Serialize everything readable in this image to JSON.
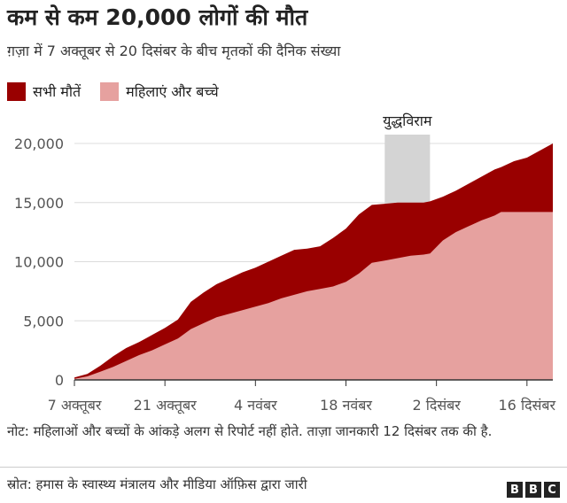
{
  "header": {
    "title": "कम से कम 20,000 लोगों की मौत",
    "subtitle": "ग़ज़ा में 7 अक्तूबर से 20 दिसंबर के बीच मृतकों की दैनिक संख्या"
  },
  "footer": {
    "note": "नोट: महिलाओं और बच्चों के आंकड़े अलग से रिपोर्ट नहीं होते. ताज़ा जानकारी 12 दिसंबर तक की है.",
    "source": "स्रोत: हमास के स्वास्थ्य मंत्रालय और मीडिया ऑफ़िस द्वारा जारी",
    "logo": [
      "B",
      "B",
      "C"
    ]
  },
  "chart_data": {
    "type": "area",
    "title": "कम से कम 20,000 लोगों की मौत",
    "subtitle": "ग़ज़ा में 7 अक्तूबर से 20 दिसंबर के बीच मृतकों की दैनिक संख्या",
    "xlabel": "",
    "ylabel": "",
    "ylim": [
      0,
      20000
    ],
    "yticks": [
      0,
      5000,
      10000,
      15000,
      20000
    ],
    "ytick_labels": [
      "0",
      "5,000",
      "10,000",
      "15,000",
      "20,000"
    ],
    "xlim": [
      "2023-10-07",
      "2023-12-20"
    ],
    "xticks": [
      "2023-10-07",
      "2023-10-21",
      "2023-11-04",
      "2023-11-18",
      "2023-12-02",
      "2023-12-16"
    ],
    "xtick_labels": [
      "7 अक्तूबर",
      "21 अक्तूबर",
      "4 नवंबर",
      "18 नवंबर",
      "2 दिसंबर",
      "16 दिसंबर"
    ],
    "grid": true,
    "legend_position": "top-left",
    "annotations": [
      {
        "label": "युद्धविराम",
        "x_start": "2023-11-24",
        "x_end": "2023-12-01"
      }
    ],
    "x": [
      "2023-10-07",
      "2023-10-09",
      "2023-10-11",
      "2023-10-13",
      "2023-10-15",
      "2023-10-17",
      "2023-10-19",
      "2023-10-21",
      "2023-10-23",
      "2023-10-25",
      "2023-10-27",
      "2023-10-29",
      "2023-10-31",
      "2023-11-02",
      "2023-11-04",
      "2023-11-06",
      "2023-11-08",
      "2023-11-10",
      "2023-11-12",
      "2023-11-14",
      "2023-11-16",
      "2023-11-18",
      "2023-11-20",
      "2023-11-22",
      "2023-11-24",
      "2023-11-26",
      "2023-11-28",
      "2023-11-30",
      "2023-12-01",
      "2023-12-03",
      "2023-12-05",
      "2023-12-07",
      "2023-12-09",
      "2023-12-10",
      "2023-12-11",
      "2023-12-12",
      "2023-12-14",
      "2023-12-16",
      "2023-12-18",
      "2023-12-20"
    ],
    "series": [
      {
        "name": "सभी मौतें",
        "color": "#990000",
        "values": [
          200,
          500,
          1200,
          2000,
          2700,
          3200,
          3800,
          4400,
          5100,
          6600,
          7400,
          8100,
          8600,
          9100,
          9500,
          10000,
          10500,
          11000,
          11100,
          11300,
          12000,
          12800,
          14000,
          14800,
          14900,
          15000,
          15000,
          15000,
          15100,
          15500,
          16000,
          16600,
          17200,
          17500,
          17800,
          18000,
          18500,
          18800,
          19400,
          20000
        ]
      },
      {
        "name": "महिलाएं और बच्चे",
        "color": "#e6a19f",
        "values": [
          100,
          300,
          700,
          1100,
          1600,
          2100,
          2500,
          3000,
          3500,
          4300,
          4800,
          5300,
          5600,
          5900,
          6200,
          6500,
          6900,
          7200,
          7500,
          7700,
          7900,
          8300,
          9000,
          9900,
          10100,
          10300,
          10500,
          10600,
          10700,
          11800,
          12500,
          13000,
          13500,
          13700,
          13900,
          14200,
          14200,
          14200,
          14200,
          14200
        ]
      }
    ]
  }
}
